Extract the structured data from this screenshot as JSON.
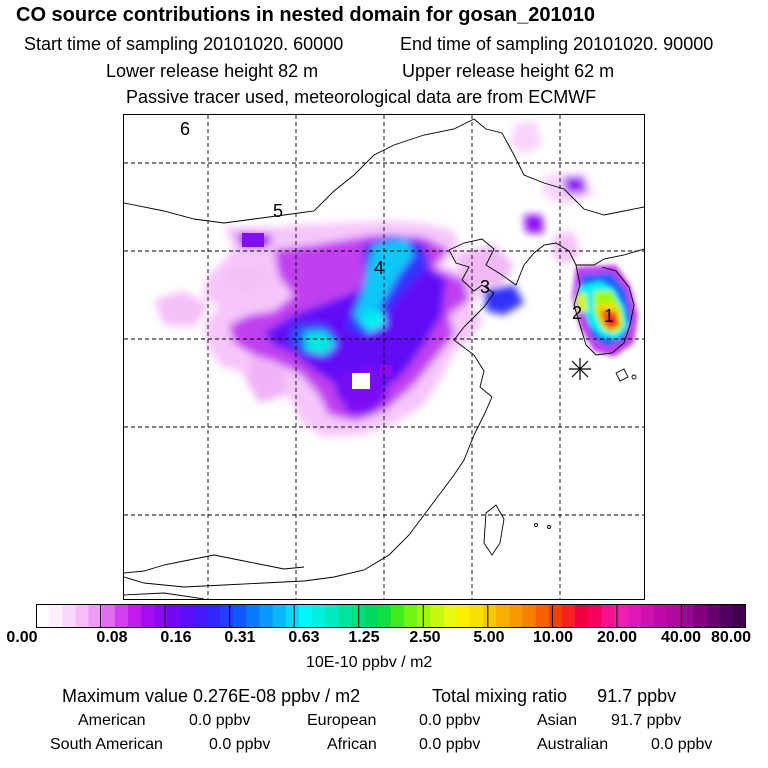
{
  "header": {
    "title": "CO  source contributions in nested domain for gosan_201010",
    "start_time": "Start time of sampling 20101020. 60000",
    "end_time": "End time of sampling 20101020. 90000",
    "lower_height": "Lower release height   82 m",
    "upper_height": "Upper release height   62 m",
    "tracer_note": "Passive tracer used, meteorological data are from ECMWF"
  },
  "map": {
    "labels": [
      "6",
      "5",
      "4",
      "3",
      "2",
      "1"
    ],
    "receptor_marker": "station-asterisk"
  },
  "colorbar": {
    "ticks": [
      "0.00",
      "0.08",
      "0.16",
      "0.31",
      "0.63",
      "1.25",
      "2.50",
      "5.00",
      "10.00",
      "20.00",
      "40.00",
      "80.00"
    ],
    "units": "10E-10 ppbv / m2",
    "colors": [
      "#ffffff",
      "#fdeefe",
      "#fbd9fc",
      "#f6bdf9",
      "#ee9cf5",
      "#e06cf2",
      "#d23ff0",
      "#c01cee",
      "#a40ef0",
      "#8c0af2",
      "#7408f6",
      "#5c0cf8",
      "#4418fa",
      "#3028fc",
      "#2040fd",
      "#1058fe",
      "#0a78fe",
      "#0898fe",
      "#08b8fe",
      "#08d8fe",
      "#00f8fa",
      "#00f0e0",
      "#00eac0",
      "#00e4a0",
      "#00de80",
      "#00d860",
      "#10e040",
      "#40ec20",
      "#70f410",
      "#a0f810",
      "#c8f810",
      "#e8f810",
      "#f8f000",
      "#f8e000",
      "#f8c800",
      "#f8b000",
      "#f89800",
      "#f88000",
      "#f86000",
      "#f84000",
      "#f82020",
      "#f00040",
      "#f80060",
      "#f81090",
      "#f020b0",
      "#e018b8",
      "#d010b0",
      "#c008a8",
      "#b008a0",
      "#980890",
      "#800080",
      "#680070",
      "#500060",
      "#400050"
    ]
  },
  "summary": {
    "max_label": "Maximum value  0.276E-08 ppbv / m2",
    "total_label": "Total mixing ratio",
    "total_value": "91.7 ppbv",
    "regions": [
      {
        "name": "American",
        "value": "0.0 ppbv"
      },
      {
        "name": "European",
        "value": "0.0 ppbv"
      },
      {
        "name": "Asian",
        "value": "91.7 ppbv"
      },
      {
        "name": "South American",
        "value": "0.0 ppbv"
      },
      {
        "name": "African",
        "value": "0.0 ppbv"
      },
      {
        "name": "Australian",
        "value": "0.0 ppbv"
      }
    ]
  }
}
